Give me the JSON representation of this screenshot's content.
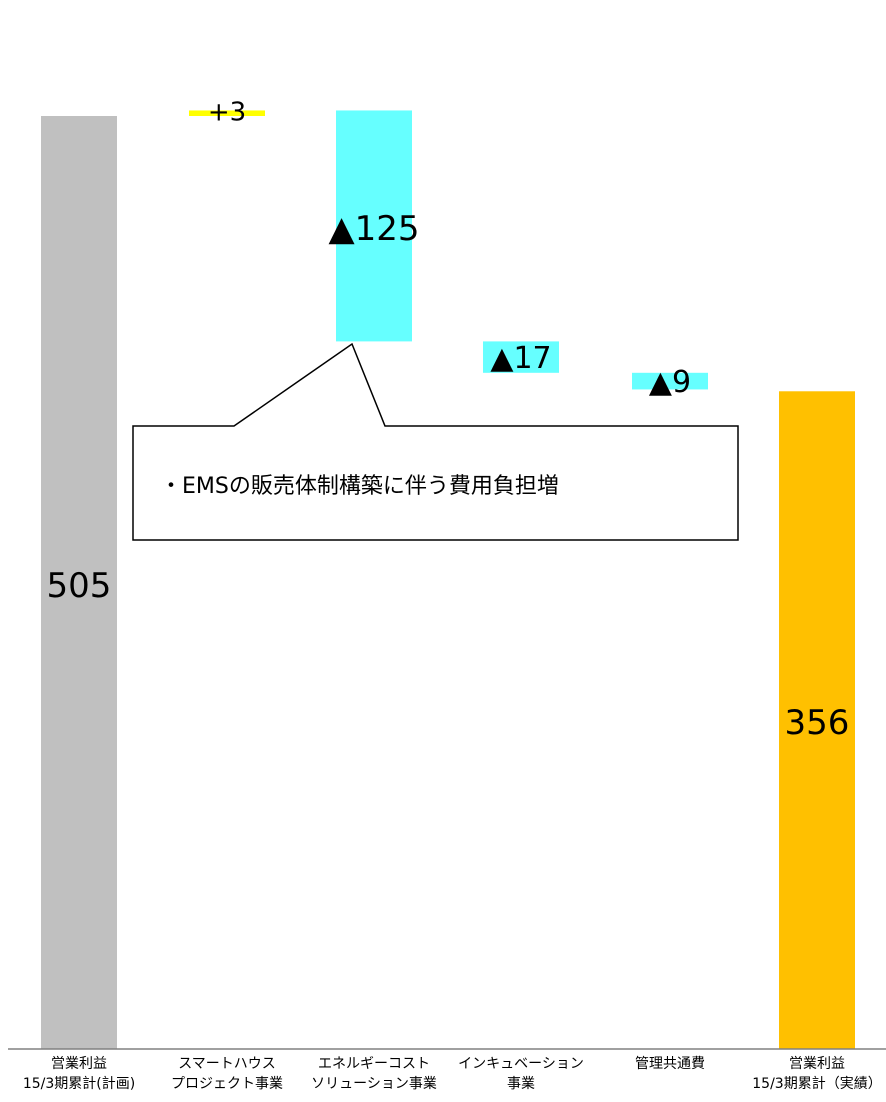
{
  "chart_data": {
    "type": "bar",
    "subtype": "waterfall",
    "categories": [
      [
        "営業利益",
        "15/3期累計(計画)"
      ],
      [
        "スマートハウス",
        "プロジェクト事業"
      ],
      [
        "エネルギーコスト",
        "ソリューション事業"
      ],
      [
        "インキュベーション",
        "事業"
      ],
      [
        "管理共通費",
        ""
      ],
      [
        "営業利益",
        "15/3期累計（実績）"
      ]
    ],
    "values": [
      505,
      3,
      -125,
      -17,
      -9,
      356
    ],
    "data_labels": [
      "505",
      "+3",
      "▲125",
      "▲17",
      "▲9",
      "356"
    ],
    "colors": [
      "#c0c0c0",
      "#ffff00",
      "#66ffff",
      "#66ffff",
      "#66ffff",
      "#ffc000"
    ],
    "ylim": [
      0,
      520
    ],
    "grid": false,
    "legend": "none",
    "annotation": "・EMSの販売体制構築に伴う費用負担増"
  }
}
